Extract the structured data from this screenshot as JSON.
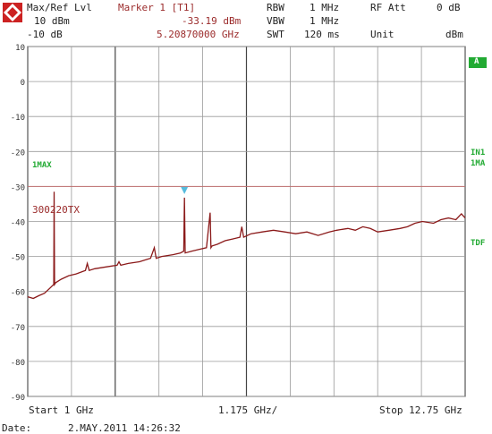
{
  "header": {
    "row1": {
      "c1": "Max/Ref Lvl",
      "c2": "Marker 1 [T1]",
      "c3": "RBW",
      "c4": "1 MHz",
      "c5": "RF Att",
      "c6": "0 dB"
    },
    "row2": {
      "c1": "10 dBm",
      "c2": "-33.19 dBm",
      "c3": "VBW",
      "c4": "1 MHz"
    },
    "row3": {
      "c1": "-10 dB",
      "c2": "5.20870000 GHz",
      "c3": "SWT",
      "c4": "120 ms",
      "c5": "Unit",
      "c6": "dBm"
    }
  },
  "side_labels": {
    "a": "A",
    "in1": "IN1",
    "ima": "1MA",
    "tdf": "TDF",
    "imax": "1MAX"
  },
  "trace_label": "300220TX",
  "footer": {
    "start": "Start 1 GHz",
    "step": "1.175 GHz/",
    "stop": "Stop 12.75 GHz",
    "date_label": "Date:",
    "date_value": "2.MAY.2011  14:26:32"
  },
  "colors": {
    "trace": "#8b1a1a",
    "grid": "#9a9a9a",
    "threshold": "#c07070",
    "marker": "#55bbdd",
    "label_green": "#22aa33"
  },
  "chart_data": {
    "type": "line",
    "title": "",
    "xlabel": "",
    "ylabel": "",
    "xlim": [
      1.0,
      12.75
    ],
    "ylim": [
      -90,
      10
    ],
    "yticks": [
      10,
      0,
      -10,
      -20,
      -30,
      -40,
      -50,
      -60,
      -70,
      -80,
      -90
    ],
    "threshold_line": -30,
    "marker": {
      "x": 5.2087,
      "y": -33.19
    },
    "series": [
      {
        "values_x": [
          1.0,
          1.15,
          1.3,
          1.45,
          1.6,
          1.7,
          1.71,
          1.72,
          1.75,
          1.9,
          2.1,
          2.3,
          2.55,
          2.6,
          2.65,
          2.8,
          3.1,
          3.4,
          3.45,
          3.5,
          3.7,
          4.0,
          4.3,
          4.4,
          4.45,
          4.6,
          4.9,
          5.1,
          5.19,
          5.2087,
          5.23,
          5.4,
          5.6,
          5.8,
          5.9,
          5.92,
          5.95,
          6.1,
          6.3,
          6.5,
          6.7,
          6.75,
          6.8,
          7.0,
          7.3,
          7.6,
          7.9,
          8.2,
          8.5,
          8.8,
          9.1,
          9.3,
          9.6,
          9.8,
          10.0,
          10.2,
          10.4,
          10.7,
          11.0,
          11.2,
          11.4,
          11.6,
          11.9,
          12.1,
          12.3,
          12.5,
          12.65,
          12.75
        ],
        "values_y": [
          -61.5,
          -62.0,
          -61.2,
          -60.5,
          -59.0,
          -58.0,
          -31.5,
          -58.0,
          -57.5,
          -56.5,
          -55.5,
          -55.0,
          -54.0,
          -52.0,
          -54.0,
          -53.5,
          -53.0,
          -52.5,
          -51.5,
          -52.5,
          -52.0,
          -51.5,
          -50.5,
          -47.5,
          -50.5,
          -50.0,
          -49.5,
          -49.0,
          -48.5,
          -33.19,
          -49.0,
          -48.5,
          -48.0,
          -47.5,
          -37.5,
          -47.5,
          -47.0,
          -46.5,
          -45.5,
          -45.0,
          -44.5,
          -41.5,
          -44.5,
          -43.5,
          -43.0,
          -42.5,
          -43.0,
          -43.5,
          -43.0,
          -44.0,
          -43.0,
          -42.5,
          -42.0,
          -42.5,
          -41.5,
          -42.0,
          -43.0,
          -42.5,
          -42.0,
          -41.5,
          -40.5,
          -40.0,
          -40.5,
          -39.5,
          -39.0,
          -39.5,
          -37.8,
          -39.0
        ]
      }
    ]
  }
}
